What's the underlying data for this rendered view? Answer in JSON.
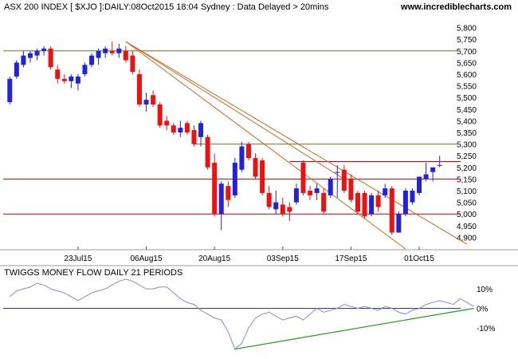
{
  "header": {
    "title": "ASX 200 INDEX [ $XJO ]:DAILY:08Oct2015 18:04 Sydney : Data Delayed > 20mins",
    "site": "www.incrediblecharts.com"
  },
  "indicator": {
    "title": "TWIGGS MONEY FLOW DAILY 21 PERIODS"
  },
  "colors": {
    "up": "#2222dd",
    "down": "#ee1111",
    "trendline": "#cc6622",
    "support": "#cc0000",
    "resistance": "#667722",
    "tmf_line": "#8888dd",
    "tmf_trend": "#229922",
    "zero_line": "#3333aa",
    "grid_text": "#000000"
  },
  "chart_data": [
    {
      "type": "candlestick",
      "title": "ASX 200 INDEX [ $XJO ]:DAILY:08Oct2015 18:04 Sydney : Data Delayed > 20mins",
      "ylim": [
        4850,
        5850
      ],
      "y_ticks": [
        "5,800",
        "5,750",
        "5,700",
        "5,650",
        "5,600",
        "5,550",
        "5,500",
        "5,450",
        "5,400",
        "5,350",
        "5,300",
        "5,250",
        "5,200",
        "5,150",
        "5,100",
        "5,050",
        "5,000",
        "4,950",
        "4,900"
      ],
      "x_ticks": [
        {
          "label": "23Jul15",
          "index": 10
        },
        {
          "label": "06Aug15",
          "index": 20
        },
        {
          "label": "20Aug15",
          "index": 30
        },
        {
          "label": "03Sep15",
          "index": 40
        },
        {
          "label": "17Sep15",
          "index": 50
        },
        {
          "label": "01Oct15",
          "index": 60
        }
      ],
      "candles": [
        {
          "o": 5480,
          "h": 5590,
          "l": 5470,
          "c": 5580
        },
        {
          "o": 5590,
          "h": 5660,
          "l": 5580,
          "c": 5650
        },
        {
          "o": 5640,
          "h": 5700,
          "l": 5630,
          "c": 5680
        },
        {
          "o": 5670,
          "h": 5700,
          "l": 5650,
          "c": 5690
        },
        {
          "o": 5680,
          "h": 5710,
          "l": 5660,
          "c": 5700
        },
        {
          "o": 5700,
          "h": 5720,
          "l": 5680,
          "c": 5710
        },
        {
          "o": 5710,
          "h": 5720,
          "l": 5620,
          "c": 5630
        },
        {
          "o": 5620,
          "h": 5640,
          "l": 5560,
          "c": 5580
        },
        {
          "o": 5580,
          "h": 5600,
          "l": 5560,
          "c": 5570
        },
        {
          "o": 5570,
          "h": 5600,
          "l": 5540,
          "c": 5590
        },
        {
          "o": 5560,
          "h": 5600,
          "l": 5530,
          "c": 5590
        },
        {
          "o": 5600,
          "h": 5650,
          "l": 5590,
          "c": 5640
        },
        {
          "o": 5640,
          "h": 5690,
          "l": 5630,
          "c": 5680
        },
        {
          "o": 5670,
          "h": 5710,
          "l": 5640,
          "c": 5700
        },
        {
          "o": 5690,
          "h": 5720,
          "l": 5670,
          "c": 5710
        },
        {
          "o": 5700,
          "h": 5740,
          "l": 5680,
          "c": 5690
        },
        {
          "o": 5690,
          "h": 5730,
          "l": 5670,
          "c": 5710
        },
        {
          "o": 5700,
          "h": 5720,
          "l": 5650,
          "c": 5660
        },
        {
          "o": 5680,
          "h": 5700,
          "l": 5600,
          "c": 5610
        },
        {
          "o": 5600,
          "h": 5620,
          "l": 5460,
          "c": 5470
        },
        {
          "o": 5470,
          "h": 5520,
          "l": 5440,
          "c": 5490
        },
        {
          "o": 5510,
          "h": 5530,
          "l": 5460,
          "c": 5470
        },
        {
          "o": 5470,
          "h": 5480,
          "l": 5370,
          "c": 5380
        },
        {
          "o": 5400,
          "h": 5420,
          "l": 5360,
          "c": 5380
        },
        {
          "o": 5380,
          "h": 5390,
          "l": 5340,
          "c": 5350
        },
        {
          "o": 5350,
          "h": 5400,
          "l": 5330,
          "c": 5370
        },
        {
          "o": 5390,
          "h": 5400,
          "l": 5340,
          "c": 5350
        },
        {
          "o": 5360,
          "h": 5380,
          "l": 5290,
          "c": 5300
        },
        {
          "o": 5330,
          "h": 5400,
          "l": 5290,
          "c": 5390
        },
        {
          "o": 5330,
          "h": 5340,
          "l": 5190,
          "c": 5200
        },
        {
          "o": 5220,
          "h": 5260,
          "l": 4990,
          "c": 5000
        },
        {
          "o": 5000,
          "h": 5140,
          "l": 4930,
          "c": 5130
        },
        {
          "o": 5120,
          "h": 5140,
          "l": 5030,
          "c": 5060
        },
        {
          "o": 5080,
          "h": 5240,
          "l": 5070,
          "c": 5220
        },
        {
          "o": 5190,
          "h": 5310,
          "l": 5180,
          "c": 5290
        },
        {
          "o": 5300,
          "h": 5310,
          "l": 5230,
          "c": 5240
        },
        {
          "o": 5240,
          "h": 5260,
          "l": 5150,
          "c": 5160
        },
        {
          "o": 5230,
          "h": 5240,
          "l": 5080,
          "c": 5090
        },
        {
          "o": 5090,
          "h": 5120,
          "l": 5020,
          "c": 5030
        },
        {
          "o": 5020,
          "h": 5100,
          "l": 5000,
          "c": 5050
        },
        {
          "o": 5040,
          "h": 5070,
          "l": 4990,
          "c": 5000
        },
        {
          "o": 5030,
          "h": 5050,
          "l": 4970,
          "c": 5010
        },
        {
          "o": 5050,
          "h": 5130,
          "l": 5040,
          "c": 5110
        },
        {
          "o": 5220,
          "h": 5230,
          "l": 5080,
          "c": 5090
        },
        {
          "o": 5100,
          "h": 5120,
          "l": 5060,
          "c": 5080
        },
        {
          "o": 5090,
          "h": 5130,
          "l": 5060,
          "c": 5110
        },
        {
          "o": 5090,
          "h": 5110,
          "l": 5000,
          "c": 5010
        },
        {
          "o": 5080,
          "h": 5160,
          "l": 5070,
          "c": 5150
        },
        {
          "o": 5180,
          "h": 5210,
          "l": 5070,
          "c": 5180
        },
        {
          "o": 5190,
          "h": 5210,
          "l": 5090,
          "c": 5100
        },
        {
          "o": 5150,
          "h": 5170,
          "l": 5050,
          "c": 5060
        },
        {
          "o": 5090,
          "h": 5100,
          "l": 5000,
          "c": 5010
        },
        {
          "o": 5090,
          "h": 5100,
          "l": 4980,
          "c": 4990
        },
        {
          "o": 5000,
          "h": 5090,
          "l": 4990,
          "c": 5080
        },
        {
          "o": 5080,
          "h": 5100,
          "l": 5010,
          "c": 5030
        },
        {
          "o": 5080,
          "h": 5130,
          "l": 5070,
          "c": 5110
        },
        {
          "o": 5110,
          "h": 5120,
          "l": 4910,
          "c": 4920
        },
        {
          "o": 4920,
          "h": 5010,
          "l": 4920,
          "c": 5000
        },
        {
          "o": 5000,
          "h": 5110,
          "l": 4990,
          "c": 5100
        },
        {
          "o": 5050,
          "h": 5110,
          "l": 5040,
          "c": 5100
        },
        {
          "o": 5090,
          "h": 5160,
          "l": 5080,
          "c": 5160
        },
        {
          "o": 5150,
          "h": 5220,
          "l": 5140,
          "c": 5170
        },
        {
          "o": 5180,
          "h": 5200,
          "l": 5140,
          "c": 5200
        },
        {
          "o": 5210,
          "h": 5250,
          "l": 5200,
          "c": 5210
        }
      ],
      "support_resistance": [
        5700,
        5300,
        5225,
        5150,
        5000
      ],
      "trendlines": [
        {
          "from": {
            "index": 17,
            "value": 5740
          },
          "to": {
            "index": 58,
            "value": 4850
          }
        },
        {
          "from": {
            "index": 17,
            "value": 5740
          },
          "to": {
            "index": 67,
            "value": 4870
          }
        },
        {
          "from": {
            "index": 17,
            "value": 5740
          },
          "to": {
            "index": 49,
            "value": 5150
          }
        }
      ]
    },
    {
      "type": "line",
      "title": "TWIGGS MONEY FLOW DAILY 21 PERIODS",
      "ylim": [
        -22,
        15
      ],
      "y_ticks": [
        "10%",
        "0%",
        "-10%"
      ],
      "values": [
        6,
        9,
        10,
        11,
        13,
        12,
        10,
        9,
        8,
        6,
        4,
        6,
        8,
        9,
        10,
        12,
        14,
        15,
        14,
        12,
        10,
        10,
        11,
        11,
        8,
        5,
        3,
        2,
        -1,
        -3,
        -5,
        -6,
        -12,
        -21,
        -18,
        -10,
        -5,
        -3,
        -2,
        -4,
        -6,
        -5,
        -4,
        -6,
        -3,
        0,
        -2,
        -1,
        0,
        2,
        1,
        0,
        1,
        0,
        -1,
        1,
        0,
        -2,
        -3,
        -1,
        0,
        2,
        3,
        4,
        3,
        2,
        5,
        3,
        1
      ],
      "trendlines": [
        {
          "from": {
            "index": 33,
            "value": -21
          },
          "to": {
            "index": 68,
            "value": 0
          }
        }
      ],
      "zero_line": 0
    }
  ]
}
